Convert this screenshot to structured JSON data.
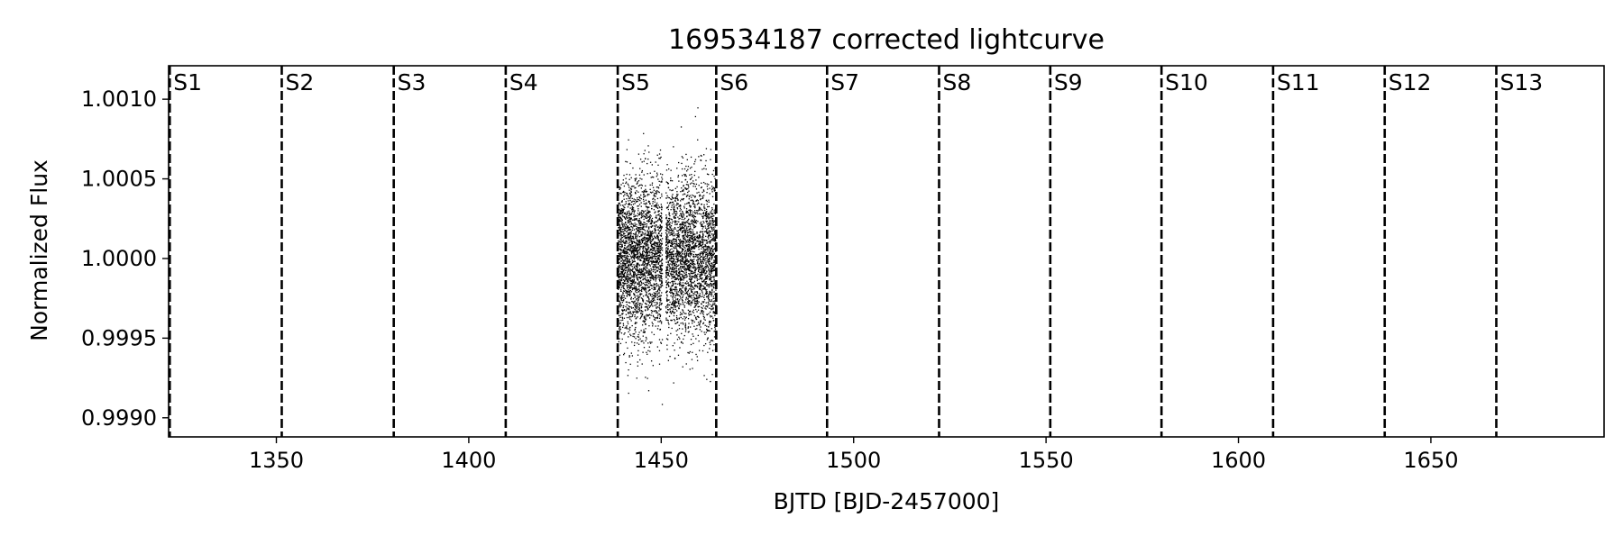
{
  "chart_data": {
    "type": "scatter",
    "title": "169534187 corrected lightcurve",
    "xlabel": "BJTD [BJD-2457000]",
    "ylabel": "Normalized Flux",
    "xlim": [
      1322,
      1695
    ],
    "ylim": [
      0.99888,
      1.00121
    ],
    "xticks": [
      {
        "value": 1350,
        "label": "1350"
      },
      {
        "value": 1400,
        "label": "1400"
      },
      {
        "value": 1450,
        "label": "1450"
      },
      {
        "value": 1500,
        "label": "1500"
      },
      {
        "value": 1550,
        "label": "1550"
      },
      {
        "value": 1600,
        "label": "1600"
      },
      {
        "value": 1650,
        "label": "1650"
      }
    ],
    "yticks": [
      {
        "value": 0.999,
        "label": "0.9990"
      },
      {
        "value": 0.9995,
        "label": "0.9995"
      },
      {
        "value": 1.0,
        "label": "1.0000"
      },
      {
        "value": 1.0005,
        "label": "1.0005"
      },
      {
        "value": 1.001,
        "label": "1.0010"
      }
    ],
    "sector_boundaries": [
      {
        "x": 1322.3,
        "label": "S1"
      },
      {
        "x": 1351.4,
        "label": "S2"
      },
      {
        "x": 1380.5,
        "label": "S3"
      },
      {
        "x": 1409.6,
        "label": "S4"
      },
      {
        "x": 1438.7,
        "label": "S5"
      },
      {
        "x": 1464.3,
        "label": "S6"
      },
      {
        "x": 1493.1,
        "label": "S7"
      },
      {
        "x": 1522.2,
        "label": "S8"
      },
      {
        "x": 1551.1,
        "label": "S9"
      },
      {
        "x": 1580.0,
        "label": "S10"
      },
      {
        "x": 1609.0,
        "label": "S11"
      },
      {
        "x": 1638.0,
        "label": "S12"
      },
      {
        "x": 1667.0,
        "label": "S13"
      }
    ],
    "data_segments": [
      {
        "x_start": 1438.8,
        "x_end": 1450.3,
        "center": 1.0,
        "sigma": 0.00025
      },
      {
        "x_start": 1451.2,
        "x_end": 1464.2,
        "center": 1.0,
        "sigma": 0.00025
      }
    ],
    "marker_color": "#000000",
    "boundary_style": "dashed",
    "grid": false
  }
}
